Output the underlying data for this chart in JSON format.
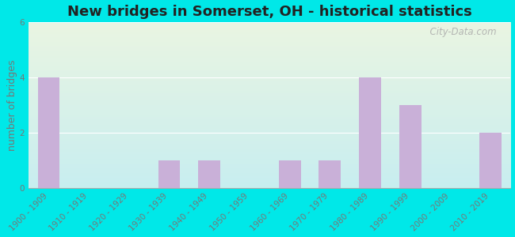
{
  "title": "New bridges in Somerset, OH - historical statistics",
  "categories": [
    "1900 - 1909",
    "1910 - 1919",
    "1920 - 1929",
    "1930 - 1939",
    "1940 - 1949",
    "1950 - 1959",
    "1960 - 1969",
    "1970 - 1979",
    "1980 - 1989",
    "1990 - 1999",
    "2000 - 2009",
    "2010 - 2019"
  ],
  "values": [
    4,
    0,
    0,
    1,
    1,
    0,
    1,
    1,
    4,
    3,
    0,
    2
  ],
  "bar_color": "#c9b0d8",
  "ylabel": "number of bridges",
  "ylim": [
    0,
    6
  ],
  "yticks": [
    0,
    2,
    4,
    6
  ],
  "background_outer": "#00e8e8",
  "background_inner_top": "#eaf5e2",
  "background_inner_bottom": "#c8eef0",
  "watermark": "  City-Data.com",
  "title_fontsize": 13,
  "ylabel_fontsize": 9,
  "tick_fontsize": 7.5,
  "tick_color": "#777777"
}
